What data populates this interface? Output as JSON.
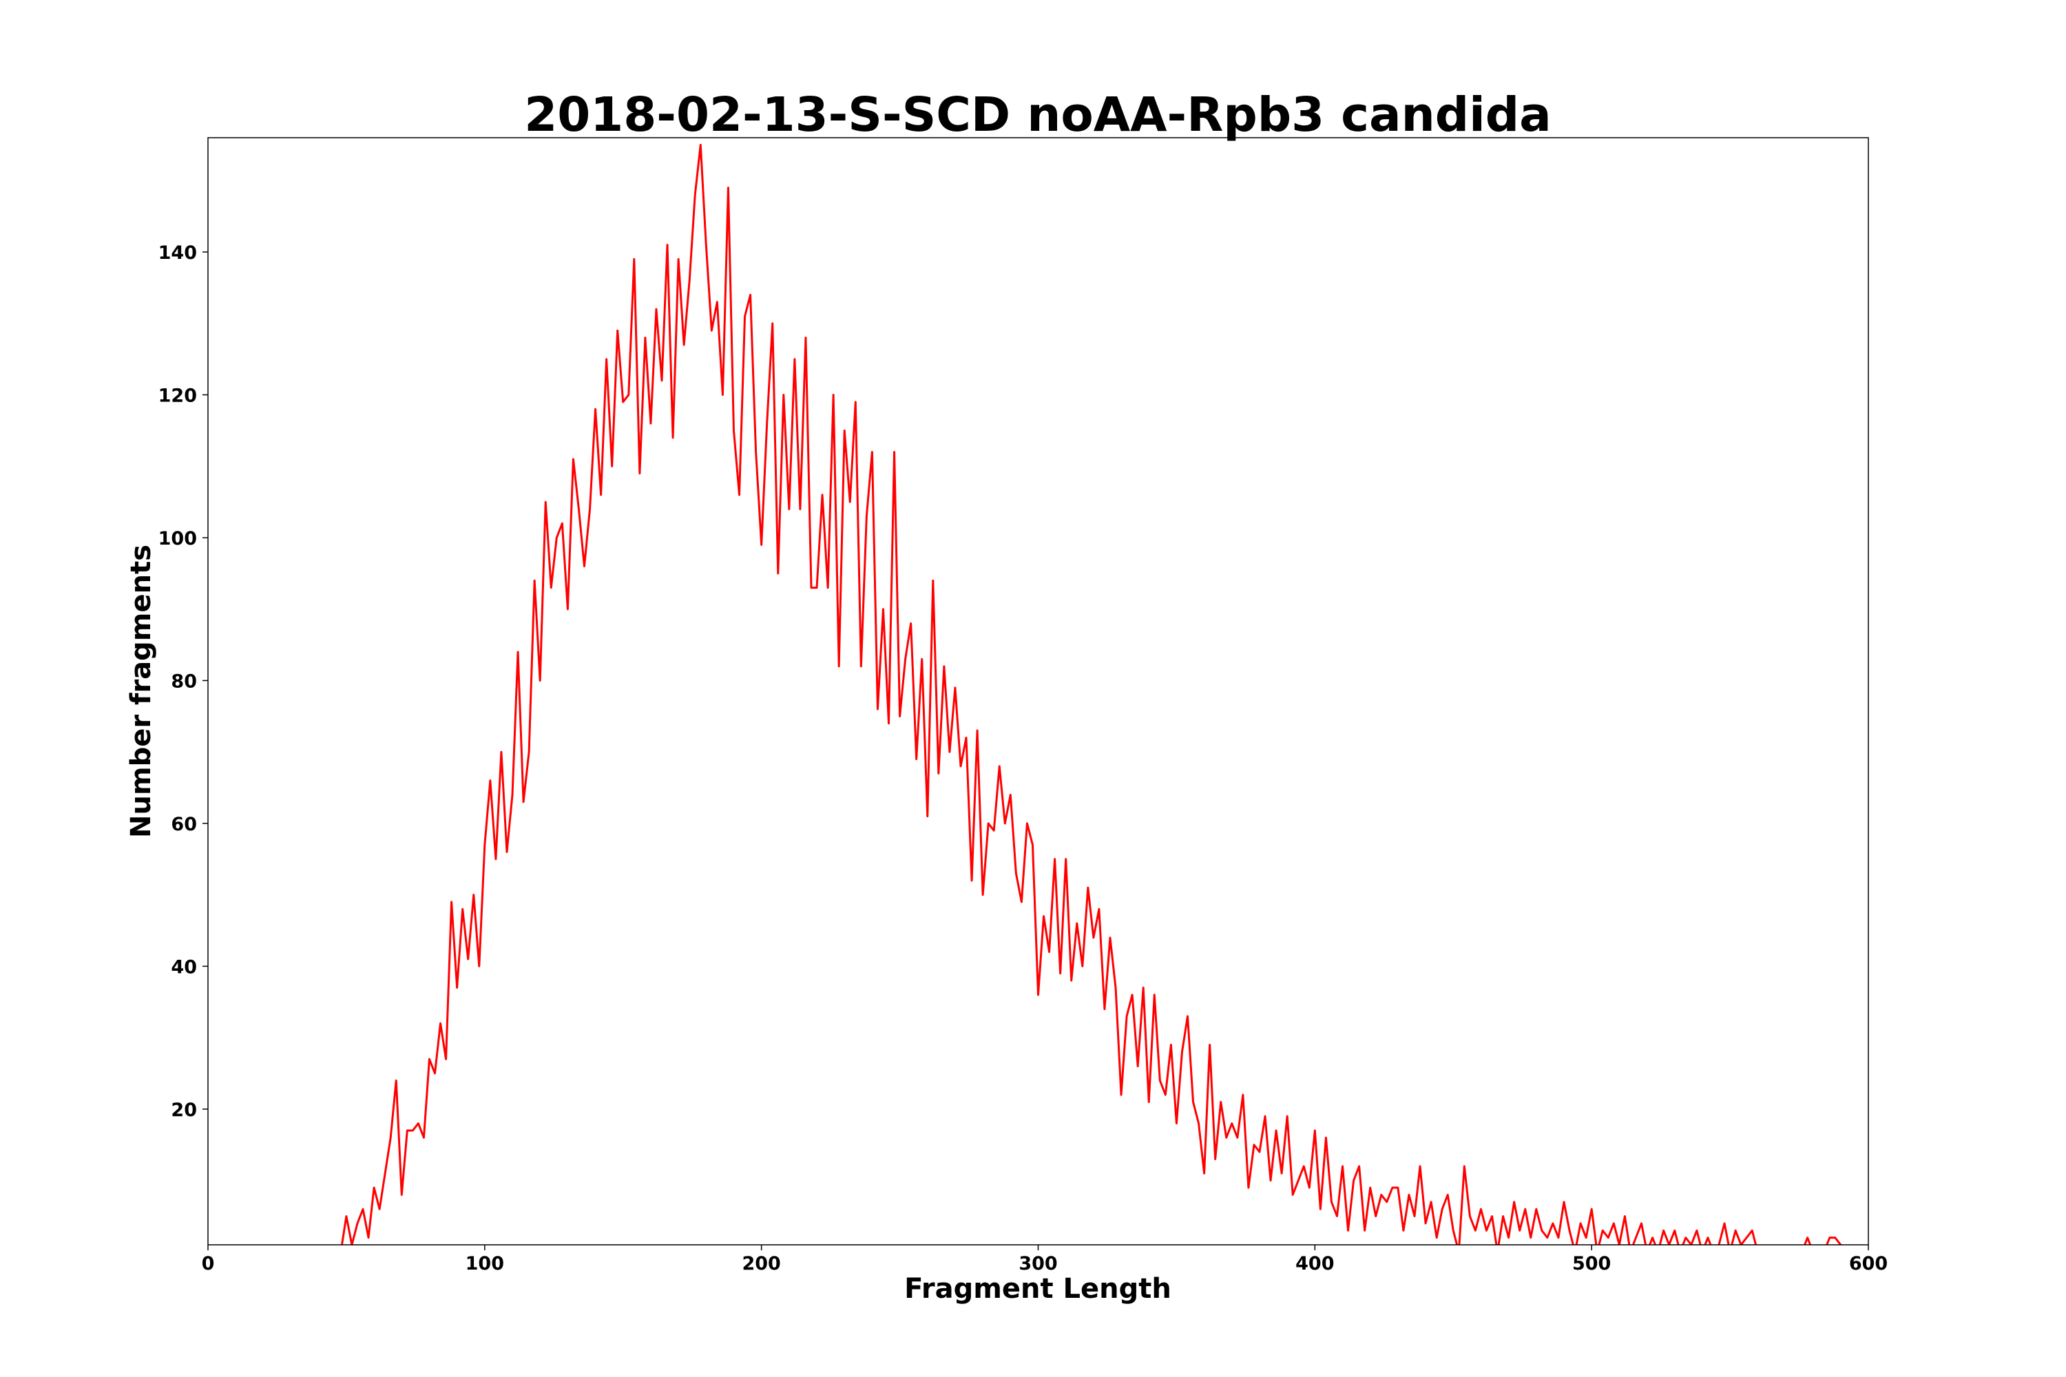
{
  "chart_data": {
    "type": "line",
    "title": "2018-02-13-S-SCD noAA-Rpb3 candida",
    "xlabel": "Fragment Length",
    "ylabel": "Number fragments",
    "x": [
      40,
      42,
      44,
      46,
      48,
      50,
      52,
      54,
      56,
      58,
      60,
      62,
      64,
      66,
      68,
      70,
      72,
      74,
      76,
      78,
      80,
      82,
      84,
      86,
      88,
      90,
      92,
      94,
      96,
      98,
      100,
      102,
      104,
      106,
      108,
      110,
      112,
      114,
      116,
      118,
      120,
      122,
      124,
      126,
      128,
      130,
      132,
      134,
      136,
      138,
      140,
      142,
      144,
      146,
      148,
      150,
      152,
      154,
      156,
      158,
      160,
      162,
      164,
      166,
      168,
      170,
      172,
      174,
      176,
      178,
      180,
      182,
      184,
      186,
      188,
      190,
      192,
      194,
      196,
      198,
      200,
      202,
      204,
      206,
      208,
      210,
      212,
      214,
      216,
      218,
      220,
      222,
      224,
      226,
      228,
      230,
      232,
      234,
      236,
      238,
      240,
      242,
      244,
      246,
      248,
      250,
      252,
      254,
      256,
      258,
      260,
      262,
      264,
      266,
      268,
      270,
      272,
      274,
      276,
      278,
      280,
      282,
      284,
      286,
      288,
      290,
      292,
      294,
      296,
      298,
      300,
      302,
      304,
      306,
      308,
      310,
      312,
      314,
      316,
      318,
      320,
      322,
      324,
      326,
      328,
      330,
      332,
      334,
      336,
      338,
      340,
      342,
      344,
      346,
      348,
      350,
      352,
      354,
      356,
      358,
      360,
      362,
      364,
      366,
      368,
      370,
      372,
      374,
      376,
      378,
      380,
      382,
      384,
      386,
      388,
      390,
      392,
      394,
      396,
      398,
      400,
      402,
      404,
      406,
      408,
      410,
      412,
      414,
      416,
      418,
      420,
      422,
      424,
      426,
      428,
      430,
      432,
      434,
      436,
      438,
      440,
      442,
      444,
      446,
      448,
      450,
      452,
      454,
      456,
      458,
      460,
      462,
      464,
      466,
      468,
      470,
      472,
      474,
      476,
      478,
      480,
      482,
      484,
      486,
      488,
      490,
      492,
      494,
      496,
      498,
      500,
      502,
      504,
      506,
      508,
      510,
      512,
      514,
      516,
      518,
      520,
      522,
      524,
      526,
      528,
      530,
      532,
      534,
      536,
      538,
      540,
      542,
      544,
      546,
      548,
      550,
      552,
      554,
      556,
      558,
      560,
      562,
      564,
      566,
      568,
      570,
      572,
      574,
      576,
      578,
      580,
      582,
      584,
      586,
      588,
      590,
      592,
      594,
      596,
      598,
      600
    ],
    "series": [
      {
        "name": "fragments",
        "color": "#ff0000",
        "values": [
          0,
          0,
          0,
          0,
          0,
          5,
          1,
          4,
          6,
          2,
          9,
          6,
          11,
          16,
          24,
          8,
          17,
          17,
          18,
          16,
          27,
          25,
          32,
          27,
          49,
          37,
          48,
          41,
          50,
          40,
          57,
          66,
          55,
          70,
          56,
          64,
          84,
          63,
          70,
          94,
          80,
          105,
          93,
          100,
          102,
          90,
          111,
          104,
          96,
          104,
          118,
          106,
          125,
          110,
          129,
          119,
          120,
          139,
          109,
          128,
          116,
          132,
          122,
          141,
          114,
          139,
          127,
          136,
          148,
          155,
          141,
          129,
          133,
          120,
          149,
          115,
          106,
          131,
          134,
          112,
          99,
          116,
          130,
          95,
          120,
          104,
          125,
          104,
          128,
          93,
          93,
          106,
          93,
          120,
          82,
          115,
          105,
          119,
          82,
          103,
          112,
          76,
          90,
          74,
          112,
          75,
          83,
          88,
          69,
          83,
          61,
          94,
          67,
          82,
          70,
          79,
          68,
          72,
          52,
          73,
          50,
          60,
          59,
          68,
          60,
          64,
          53,
          49,
          60,
          57,
          36,
          47,
          42,
          55,
          39,
          55,
          38,
          46,
          40,
          51,
          44,
          48,
          34,
          44,
          37,
          22,
          33,
          36,
          26,
          37,
          21,
          36,
          24,
          22,
          29,
          18,
          28,
          33,
          21,
          18,
          11,
          29,
          13,
          21,
          16,
          18,
          16,
          22,
          9,
          15,
          14,
          19,
          10,
          17,
          11,
          19,
          8,
          10,
          12,
          9,
          17,
          6,
          16,
          7,
          5,
          12,
          3,
          10,
          12,
          3,
          9,
          5,
          8,
          7,
          9,
          9,
          3,
          8,
          5,
          12,
          4,
          7,
          2,
          6,
          8,
          3,
          0,
          12,
          5,
          3,
          6,
          3,
          5,
          0,
          5,
          2,
          7,
          3,
          6,
          2,
          6,
          3,
          2,
          4,
          2,
          7,
          3,
          0,
          4,
          2,
          6,
          0,
          3,
          2,
          4,
          1,
          5,
          0,
          2,
          4,
          0,
          2,
          0,
          3,
          1,
          3,
          0,
          2,
          1,
          3,
          0,
          2,
          0,
          1,
          4,
          0,
          3,
          1,
          2,
          3,
          0,
          0,
          0,
          0,
          0,
          0,
          0,
          0,
          0,
          2,
          0,
          0,
          0,
          2,
          2,
          1,
          0,
          0,
          0,
          0,
          0
        ]
      }
    ],
    "xlim": [
      0,
      600
    ],
    "ylim": [
      1,
      156
    ],
    "xticks": [
      0,
      100,
      200,
      300,
      400,
      500,
      600
    ],
    "yticks": [
      20,
      40,
      60,
      80,
      100,
      120,
      140
    ],
    "grid": false
  }
}
